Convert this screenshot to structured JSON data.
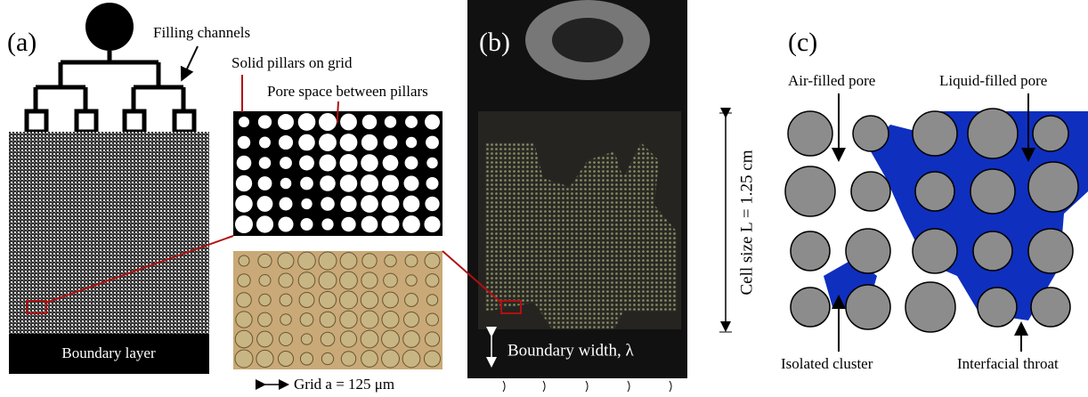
{
  "panel_a": {
    "label": "(a)",
    "filling_channels": "Filling channels",
    "solid_pillars": "Solid pillars on grid",
    "pore_space": "Pore space between pillars",
    "boundary_layer": "Boundary layer",
    "grid": "Grid a = 125 μm"
  },
  "panel_b": {
    "label": "(b)",
    "boundary_width": "Boundary width, λ",
    "cell_size": "Cell size L = 1.25 cm"
  },
  "panel_c": {
    "label": "(c)",
    "air_filled": "Air-filled pore",
    "liquid_filled": "Liquid-filled pore",
    "isolated_cluster": "Isolated cluster",
    "interfacial_throat": "Interfacial throat"
  }
}
